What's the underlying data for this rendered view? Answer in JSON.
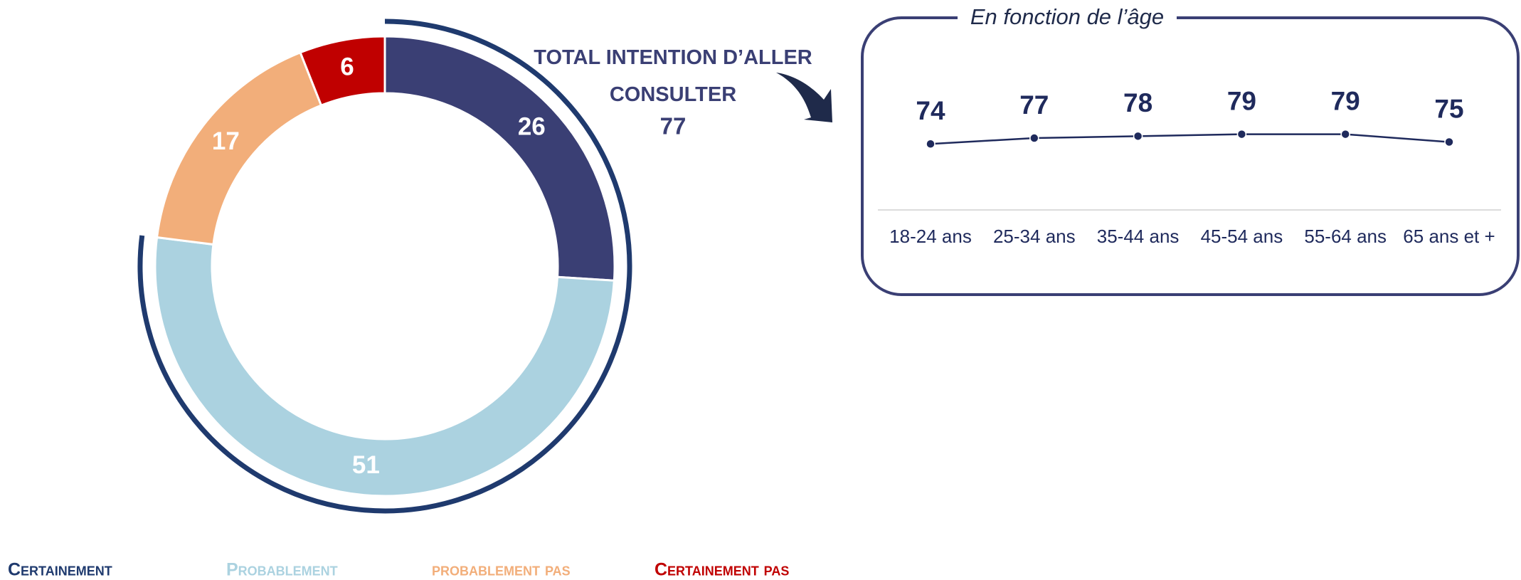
{
  "chart_data": [
    {
      "type": "pie",
      "categories": [
        "Certainement",
        "Probablement",
        "probablement pas",
        "Certainement pas"
      ],
      "values": [
        26,
        51,
        17,
        6
      ],
      "colors": [
        "#3a3f74",
        "#abd2e0",
        "#f2ae7a",
        "#c00000"
      ],
      "legend_colors": [
        "#1f3a6e",
        "#abd2e0",
        "#f2ae7a",
        "#c00000"
      ],
      "annotation": {
        "text": "TOTAL INTENTION D’ALLER CONSULTER",
        "value": 77
      }
    },
    {
      "type": "line",
      "title": "En fonction de l’âge",
      "categories": [
        "18-24 ans",
        "25-34 ans",
        "35-44 ans",
        "45-54 ans",
        "55-64 ans",
        "65 ans et +"
      ],
      "values": [
        74,
        77,
        78,
        79,
        79,
        75
      ],
      "color": "#1f2a5c",
      "ylim": [
        40,
        110
      ]
    }
  ]
}
